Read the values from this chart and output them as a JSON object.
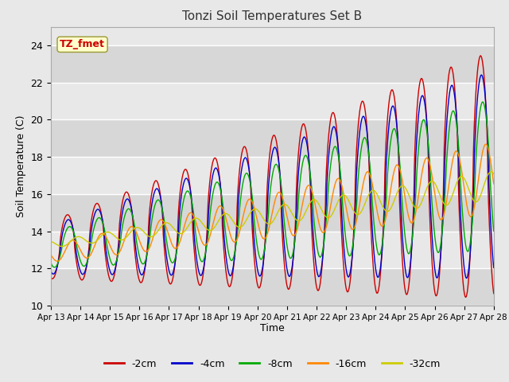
{
  "title": "Tonzi Soil Temperatures Set B",
  "xlabel": "Time",
  "ylabel": "Soil Temperature (C)",
  "ylim": [
    10,
    25
  ],
  "yticks": [
    10,
    12,
    14,
    16,
    18,
    20,
    22,
    24
  ],
  "series_colors": [
    "#cc0000",
    "#0000cc",
    "#00aa00",
    "#ff8800",
    "#cccc00"
  ],
  "series_labels": [
    "-2cm",
    "-4cm",
    "-8cm",
    "-16cm",
    "-32cm"
  ],
  "annotation_text": "TZ_fmet",
  "annotation_color": "#cc0000",
  "annotation_bg": "#ffffcc",
  "fig_bg": "#e8e8e8",
  "plot_bg": "#e8e8e8",
  "band_colors": [
    "#d8d8d8",
    "#e8e8e8"
  ],
  "n_points": 1440,
  "num_days": 15
}
